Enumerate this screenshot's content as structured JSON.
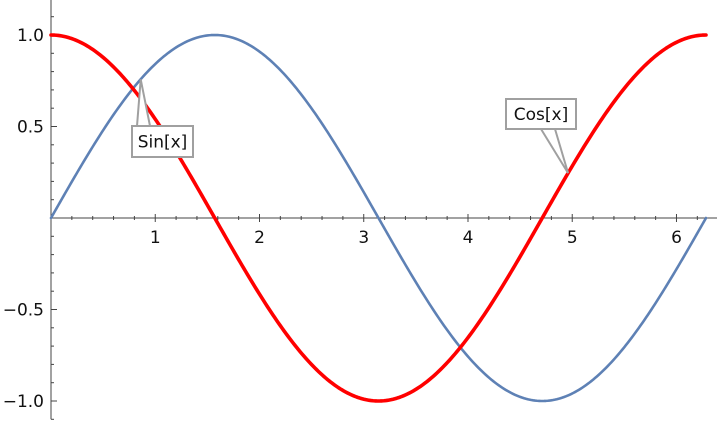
{
  "chart_data": {
    "type": "line",
    "title": "",
    "xlabel": "",
    "ylabel": "",
    "xlim": [
      0,
      6.2832
    ],
    "ylim": [
      -1.1,
      1.2
    ],
    "x_ticks": [
      1,
      2,
      3,
      4,
      5,
      6
    ],
    "x_tick_labels": [
      "1",
      "2",
      "3",
      "4",
      "5",
      "6"
    ],
    "y_ticks": [
      -1.0,
      -0.5,
      0.5,
      1.0
    ],
    "y_tick_labels": [
      "−1.0",
      "−0.5",
      "0.5",
      "1.0"
    ],
    "grid": false,
    "series": [
      {
        "name": "Sin[x]",
        "function": "sin",
        "color": "#5e81b5",
        "x": [
          0,
          0.25,
          0.5,
          0.75,
          1.0,
          1.25,
          1.5,
          1.5708,
          1.75,
          2.0,
          2.25,
          2.5,
          2.75,
          3.0,
          3.1416,
          3.25,
          3.5,
          3.75,
          4.0,
          4.25,
          4.5,
          4.7124,
          4.75,
          5.0,
          5.25,
          5.5,
          5.75,
          6.0,
          6.2832
        ],
        "y": [
          0.0,
          0.247,
          0.479,
          0.682,
          0.841,
          0.949,
          0.997,
          1.0,
          0.984,
          0.909,
          0.778,
          0.598,
          0.382,
          0.141,
          0.0,
          -0.108,
          -0.351,
          -0.572,
          -0.757,
          -0.895,
          -0.978,
          -1.0,
          -0.999,
          -0.959,
          -0.859,
          -0.706,
          -0.509,
          -0.279,
          0.0
        ]
      },
      {
        "name": "Cos[x]",
        "function": "cos",
        "color": "#ff0000",
        "x": [
          0,
          0.25,
          0.5,
          0.75,
          1.0,
          1.25,
          1.5,
          1.5708,
          1.75,
          2.0,
          2.25,
          2.5,
          2.75,
          3.0,
          3.1416,
          3.25,
          3.5,
          3.75,
          4.0,
          4.25,
          4.5,
          4.7124,
          4.75,
          5.0,
          5.25,
          5.5,
          5.75,
          6.0,
          6.2832
        ],
        "y": [
          1.0,
          0.969,
          0.878,
          0.732,
          0.54,
          0.315,
          0.071,
          0.0,
          -0.178,
          -0.416,
          -0.628,
          -0.801,
          -0.924,
          -0.99,
          -1.0,
          -0.994,
          -0.936,
          -0.82,
          -0.654,
          -0.446,
          -0.211,
          0.0,
          0.038,
          0.284,
          0.512,
          0.709,
          0.861,
          0.96,
          1.0
        ]
      }
    ],
    "annotations": [
      {
        "text": "Sin[x]",
        "series": "Sin[x]",
        "at_x": 0.86
      },
      {
        "text": "Cos[x]",
        "series": "Cos[x]",
        "at_x": 4.96
      }
    ]
  }
}
